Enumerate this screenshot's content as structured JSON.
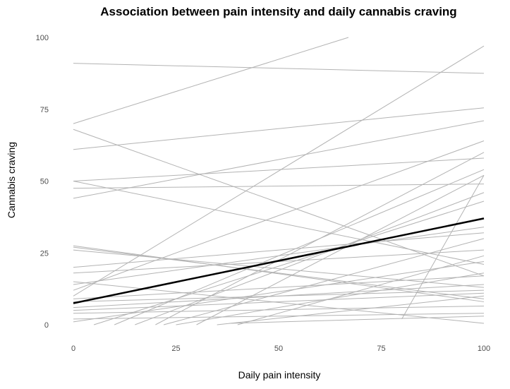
{
  "chart_data": {
    "type": "line",
    "title": "Association between pain intensity and daily cannabis craving",
    "xlabel": "Daily pain intensity",
    "ylabel": "Cannabis craving",
    "xlim": [
      0,
      100
    ],
    "ylim": [
      0,
      100
    ],
    "x_ticks": [
      0,
      25,
      50,
      75,
      100
    ],
    "y_ticks": [
      0,
      25,
      50,
      75,
      100
    ],
    "grid": false,
    "legend": "none",
    "colors": {
      "individual": "#b3b3b3",
      "average": "#000000"
    },
    "average_line": {
      "x": [
        0,
        100
      ],
      "y": [
        7.5,
        37
      ]
    },
    "series": [
      {
        "x": [
          0,
          67
        ],
        "y": [
          70,
          100
        ]
      },
      {
        "x": [
          0,
          100
        ],
        "y": [
          91,
          87.5
        ]
      },
      {
        "x": [
          0,
          100
        ],
        "y": [
          61,
          75.5
        ]
      },
      {
        "x": [
          0,
          100
        ],
        "y": [
          68,
          17
        ]
      },
      {
        "x": [
          0,
          100
        ],
        "y": [
          50,
          58
        ]
      },
      {
        "x": [
          0,
          100
        ],
        "y": [
          47.5,
          49
        ]
      },
      {
        "x": [
          0,
          100
        ],
        "y": [
          44,
          71
        ]
      },
      {
        "x": [
          0,
          100
        ],
        "y": [
          50,
          21
        ]
      },
      {
        "x": [
          0,
          100
        ],
        "y": [
          27.5,
          8
        ]
      },
      {
        "x": [
          0,
          100
        ],
        "y": [
          26,
          13
        ]
      },
      {
        "x": [
          0,
          100
        ],
        "y": [
          20,
          32
        ]
      },
      {
        "x": [
          0,
          100
        ],
        "y": [
          18,
          26
        ]
      },
      {
        "x": [
          0,
          100
        ],
        "y": [
          12,
          64
        ]
      },
      {
        "x": [
          0,
          100
        ],
        "y": [
          10,
          97
        ]
      },
      {
        "x": [
          0,
          100
        ],
        "y": [
          9,
          17
        ]
      },
      {
        "x": [
          0,
          100
        ],
        "y": [
          8,
          12
        ]
      },
      {
        "x": [
          0,
          100
        ],
        "y": [
          5,
          11
        ]
      },
      {
        "x": [
          0,
          100
        ],
        "y": [
          4,
          6.5
        ]
      },
      {
        "x": [
          0,
          100
        ],
        "y": [
          2,
          4
        ]
      },
      {
        "x": [
          0,
          100
        ],
        "y": [
          1,
          22
        ]
      },
      {
        "x": [
          0,
          100
        ],
        "y": [
          14,
          34
        ]
      },
      {
        "x": [
          0,
          100
        ],
        "y": [
          15,
          0.5
        ]
      },
      {
        "x": [
          0,
          100
        ],
        "y": [
          6,
          14
        ]
      },
      {
        "x": [
          0,
          100
        ],
        "y": [
          27,
          9
        ]
      },
      {
        "x": [
          5,
          100
        ],
        "y": [
          0,
          43
        ]
      },
      {
        "x": [
          10,
          100
        ],
        "y": [
          0,
          54
        ]
      },
      {
        "x": [
          15,
          100
        ],
        "y": [
          0,
          46
        ]
      },
      {
        "x": [
          20,
          100
        ],
        "y": [
          0,
          60
        ]
      },
      {
        "x": [
          22,
          100
        ],
        "y": [
          0,
          30
        ]
      },
      {
        "x": [
          25,
          100
        ],
        "y": [
          0,
          18
        ]
      },
      {
        "x": [
          30,
          100
        ],
        "y": [
          0,
          52
        ]
      },
      {
        "x": [
          35,
          100
        ],
        "y": [
          0,
          10
        ]
      },
      {
        "x": [
          38,
          100
        ],
        "y": [
          0.5,
          3
        ]
      },
      {
        "x": [
          40,
          100
        ],
        "y": [
          0,
          24
        ]
      },
      {
        "x": [
          80,
          100
        ],
        "y": [
          2,
          52
        ]
      }
    ]
  }
}
